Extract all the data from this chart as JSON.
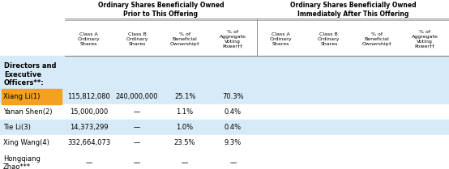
{
  "title_left": "Ordinary Shares Beneficially Owned\nPrior to This Offering",
  "title_right": "Ordinary Shares Beneficially Owned\nImmediately After This Offering",
  "col_headers": [
    "Class A\nOrdinary\nShares",
    "Class B\nOrdinary\nShares",
    "% of\nBeneficial\nOwnership†",
    "% of\nAggregate\nVoting\nPower††",
    "Class A\nOrdinary\nShares",
    "Class B\nOrdinary\nShares",
    "% of\nBeneficial\nOwnership†",
    "% of\nAggregate\nVoting\nPower††"
  ],
  "row_header": "Directors and\nExecutive\nOfficers**:",
  "rows": [
    {
      "name": "Xiang Li(1)",
      "highlight": true,
      "highlight_color": "#F4A020",
      "values": [
        "115,812,080",
        "240,000,000",
        "25.1%",
        "70.3%",
        "",
        "",
        "",
        ""
      ]
    },
    {
      "name": "Yanan Shen(2)",
      "highlight": false,
      "values": [
        "15,000,000",
        "—",
        "1.1%",
        "0.4%",
        "",
        "",
        "",
        ""
      ]
    },
    {
      "name": "Tie Li(3)",
      "highlight": false,
      "values": [
        "14,373,299",
        "—",
        "1.0%",
        "0.4%",
        "",
        "",
        "",
        ""
      ]
    },
    {
      "name": "Xing Wang(4)",
      "highlight": false,
      "values": [
        "332,664,073",
        "—",
        "23.5%",
        "9.3%",
        "",
        "",
        "",
        ""
      ]
    },
    {
      "name": "Hongqiang\nZhao***",
      "highlight": false,
      "values": [
        "—",
        "—",
        "—",
        "—",
        "",
        "",
        "",
        ""
      ]
    }
  ],
  "bg_color_light": "#D6EAF8",
  "bg_color_white": "#FFFFFF",
  "header_bg": "#FFFFFF",
  "border_color": "#888888",
  "text_color": "#000000",
  "bold_rows": [
    0,
    2,
    4
  ],
  "divider_col": 4
}
